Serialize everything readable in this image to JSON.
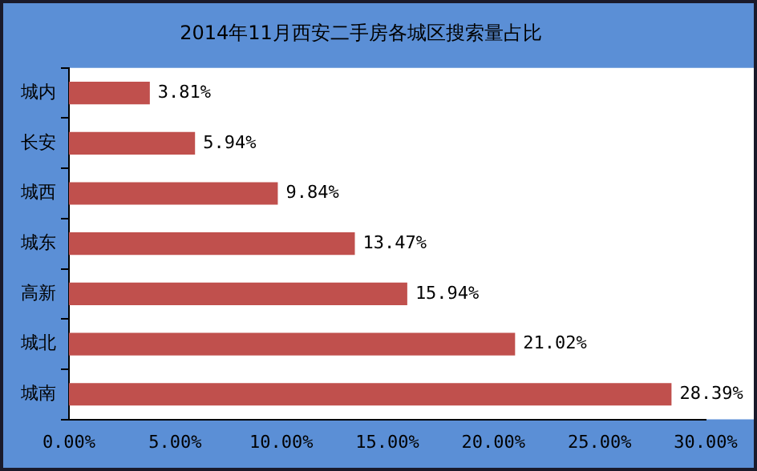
{
  "chart_data": {
    "type": "bar",
    "orientation": "horizontal",
    "title": "2014年11月西安二手房各城区搜索量占比",
    "categories": [
      "城内",
      "长安",
      "城西",
      "城东",
      "高新",
      "城北",
      "城南"
    ],
    "values": [
      3.81,
      5.94,
      9.84,
      13.47,
      15.94,
      21.02,
      28.39
    ],
    "value_labels": [
      "3.81%",
      "5.94%",
      "9.84%",
      "13.47%",
      "15.94%",
      "21.02%",
      "28.39%"
    ],
    "color": "#c0504d",
    "xlim": [
      0,
      30
    ],
    "xticks": [
      {
        "value": 0,
        "label": "0.00%"
      },
      {
        "value": 5,
        "label": "5.00%"
      },
      {
        "value": 10,
        "label": "10.00%"
      },
      {
        "value": 15,
        "label": "15.00%"
      },
      {
        "value": 20,
        "label": "20.00%"
      },
      {
        "value": 25,
        "label": "25.00%"
      },
      {
        "value": 30,
        "label": "30.00%"
      }
    ],
    "grid": false,
    "legend": false
  }
}
